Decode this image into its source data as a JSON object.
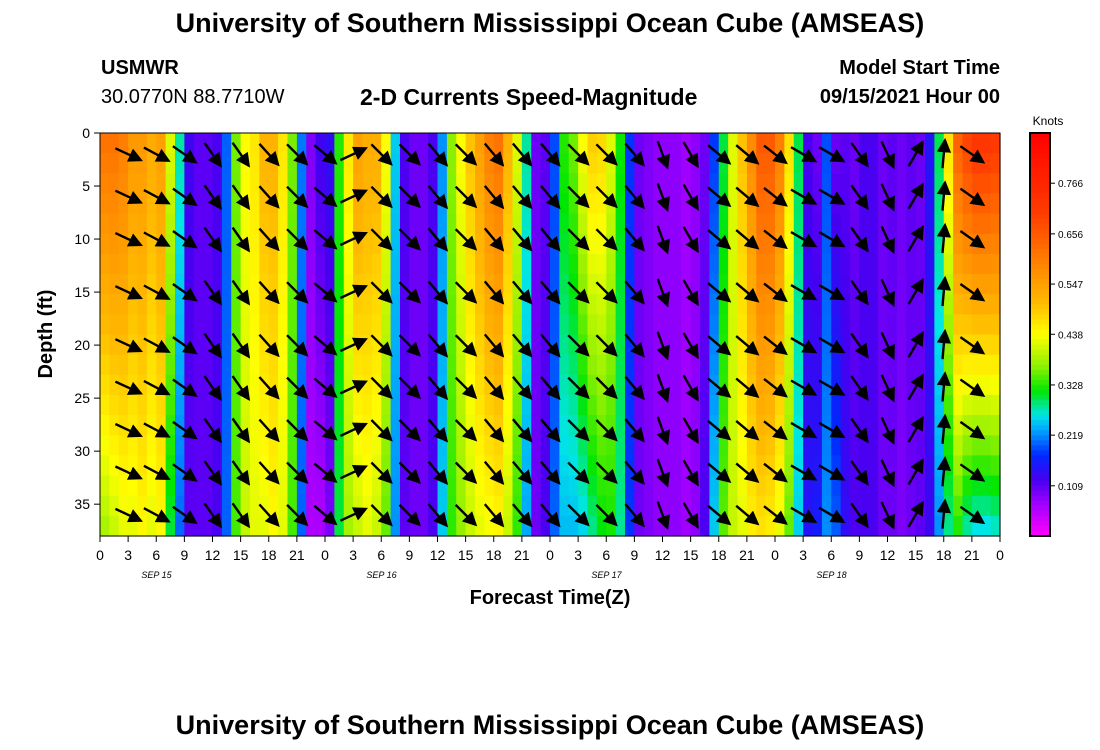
{
  "header": {
    "title": "University of Southern Mississippi Ocean Cube (AMSEAS)",
    "station": "USMWR",
    "coordinates": "30.0770N  88.7710W",
    "plot_title": "2-D Currents Speed-Magnitude",
    "model_start_label": "Model Start Time",
    "model_start_value": "09/15/2021 Hour 00"
  },
  "footer": {
    "title": "University of Southern Mississippi Ocean Cube (AMSEAS)"
  },
  "chart_data": {
    "type": "heatmap",
    "title": "2-D Currents Speed-Magnitude",
    "xlabel": "Forecast Time(Z)",
    "ylabel": "Depth (ft)",
    "x_tick_labels": [
      "0",
      "3",
      "6",
      "9",
      "12",
      "15",
      "18",
      "21",
      "0",
      "3",
      "6",
      "9",
      "12",
      "15",
      "18",
      "21",
      "0",
      "3",
      "6",
      "9",
      "12",
      "15",
      "18",
      "21",
      "0",
      "3",
      "6",
      "9",
      "12",
      "15",
      "18",
      "21",
      "0"
    ],
    "x_day_labels": [
      "SEP 15",
      "SEP 16",
      "SEP 17",
      "SEP 18"
    ],
    "x_range_hours": [
      0,
      96
    ],
    "y_ticks": [
      0,
      5,
      10,
      15,
      20,
      25,
      30,
      35
    ],
    "y_range": [
      0,
      38
    ],
    "y_inverted": true,
    "colorbar": {
      "unit": "Knots",
      "tick_labels": [
        "0.766",
        "0.656",
        "0.547",
        "0.438",
        "0.328",
        "0.219",
        "0.109"
      ],
      "ticks": [
        0.766,
        0.656,
        0.547,
        0.438,
        0.328,
        0.219,
        0.109
      ],
      "range": [
        0.0,
        0.875
      ]
    },
    "speed_profile": {
      "hours": [
        0,
        1,
        2,
        3,
        4,
        5,
        6,
        7,
        8,
        9,
        10,
        11,
        12,
        13,
        14,
        15,
        16,
        17,
        18,
        19,
        20,
        21,
        22,
        23,
        24,
        25,
        26,
        27,
        28,
        29,
        30,
        31,
        32,
        33,
        34,
        35,
        36,
        37,
        38,
        39,
        40,
        41,
        42,
        43,
        44,
        45,
        46,
        47,
        48,
        49,
        50,
        51,
        52,
        53,
        54,
        55,
        56,
        57,
        58,
        59,
        60,
        61,
        62,
        63,
        64,
        65,
        66,
        67,
        68,
        69,
        70,
        71,
        72,
        73,
        74,
        75,
        76,
        77,
        78,
        79,
        80,
        81,
        82,
        83,
        84,
        85,
        86,
        87,
        88,
        89,
        90,
        91,
        92,
        93,
        94,
        95,
        96
      ],
      "surface_knots": [
        0.62,
        0.62,
        0.6,
        0.56,
        0.56,
        0.53,
        0.55,
        0.42,
        0.28,
        0.13,
        0.11,
        0.11,
        0.12,
        0.2,
        0.36,
        0.44,
        0.46,
        0.52,
        0.52,
        0.46,
        0.36,
        0.21,
        0.09,
        0.13,
        0.14,
        0.33,
        0.46,
        0.55,
        0.53,
        0.53,
        0.44,
        0.25,
        0.12,
        0.1,
        0.1,
        0.12,
        0.22,
        0.37,
        0.44,
        0.5,
        0.55,
        0.6,
        0.62,
        0.52,
        0.42,
        0.28,
        0.1,
        0.11,
        0.19,
        0.33,
        0.36,
        0.44,
        0.49,
        0.48,
        0.42,
        0.32,
        0.18,
        0.1,
        0.09,
        0.08,
        0.08,
        0.08,
        0.07,
        0.08,
        0.1,
        0.18,
        0.3,
        0.42,
        0.5,
        0.58,
        0.66,
        0.66,
        0.6,
        0.47,
        0.3,
        0.12,
        0.1,
        0.19,
        0.1,
        0.11,
        0.1,
        0.12,
        0.12,
        0.1,
        0.11,
        0.1,
        0.11,
        0.1,
        0.15,
        0.3,
        0.47,
        0.65,
        0.7,
        0.73,
        0.73,
        0.72,
        0.66
      ],
      "bottom_knots": [
        0.38,
        0.4,
        0.42,
        0.42,
        0.44,
        0.42,
        0.44,
        0.3,
        0.2,
        0.11,
        0.11,
        0.11,
        0.12,
        0.2,
        0.34,
        0.4,
        0.42,
        0.42,
        0.44,
        0.42,
        0.34,
        0.2,
        0.06,
        0.06,
        0.09,
        0.3,
        0.38,
        0.4,
        0.42,
        0.4,
        0.35,
        0.22,
        0.11,
        0.1,
        0.1,
        0.12,
        0.25,
        0.33,
        0.37,
        0.4,
        0.42,
        0.43,
        0.44,
        0.4,
        0.33,
        0.23,
        0.1,
        0.12,
        0.2,
        0.24,
        0.24,
        0.25,
        0.28,
        0.31,
        0.32,
        0.28,
        0.18,
        0.1,
        0.09,
        0.08,
        0.08,
        0.08,
        0.07,
        0.08,
        0.12,
        0.25,
        0.35,
        0.4,
        0.42,
        0.45,
        0.46,
        0.45,
        0.42,
        0.35,
        0.25,
        0.15,
        0.16,
        0.22,
        0.2,
        0.14,
        0.12,
        0.12,
        0.12,
        0.1,
        0.1,
        0.09,
        0.1,
        0.11,
        0.13,
        0.22,
        0.28,
        0.32,
        0.27,
        0.25,
        0.25,
        0.26,
        0.24
      ]
    },
    "vector_columns_hours": [
      0,
      3,
      6,
      9,
      12,
      15,
      18,
      21,
      24,
      27,
      30,
      33,
      36,
      39,
      42,
      45,
      48,
      51,
      54,
      57,
      60,
      63,
      66,
      69,
      72,
      75,
      78,
      81,
      84,
      87,
      90,
      93,
      96
    ],
    "vector_angle_deg": [
      -25,
      -25,
      -28,
      -35,
      -55,
      -55,
      -48,
      -45,
      -40,
      25,
      -45,
      -45,
      -50,
      -45,
      -50,
      -50,
      -50,
      -45,
      -45,
      -50,
      -70,
      -60,
      -40,
      -40,
      -38,
      -30,
      -30,
      -55,
      -65,
      60,
      85,
      -35,
      -35
    ],
    "vector_depths_ft": [
      2,
      6,
      10,
      15,
      20,
      24,
      28,
      32,
      36
    ]
  }
}
